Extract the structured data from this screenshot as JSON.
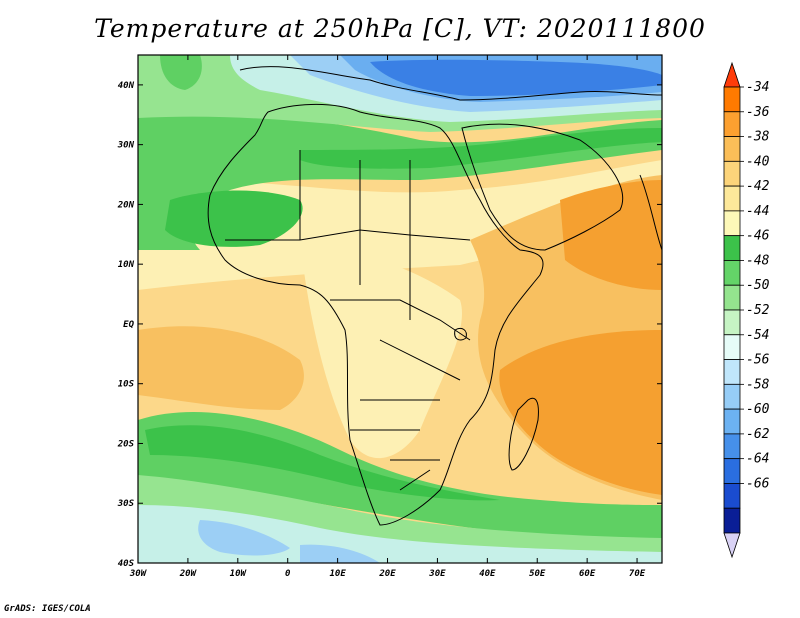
{
  "title": "Temperature at 250hPa [C], VT: 2020111800",
  "credit": "GrADS: IGES/COLA",
  "map": {
    "lon_ticks": [
      "30W",
      "20W",
      "10W",
      "0",
      "10E",
      "20E",
      "30E",
      "40E",
      "50E",
      "60E",
      "70E"
    ],
    "lat_ticks": [
      "40N",
      "30N",
      "20N",
      "10N",
      "EQ",
      "10S",
      "20S",
      "30S",
      "40S"
    ],
    "extent": {
      "lon_min": -30,
      "lon_max": 75,
      "lat_min": -40,
      "lat_max": 45
    },
    "colors": {
      "warm_deep": "#f5a030",
      "warm": "#f8c060",
      "warm_light": "#fcd88a",
      "pale": "#fdf0b4",
      "green_deep": "#3cc24a",
      "green": "#5fd063",
      "green_light": "#96e490",
      "aqua": "#c6f0e8",
      "sky": "#9ccff5",
      "blue": "#6aaef0",
      "blue_deep": "#3a80e5"
    }
  },
  "colorbar": {
    "labels": [
      "-34",
      "-36",
      "-38",
      "-40",
      "-42",
      "-44",
      "-46",
      "-48",
      "-50",
      "-52",
      "-54",
      "-56",
      "-58",
      "-60",
      "-62",
      "-64",
      "-66"
    ],
    "colors": [
      "#ff3c0a",
      "#ff7a00",
      "#fca030",
      "#fbbe58",
      "#fcd47a",
      "#fde89a",
      "#fdf8b8",
      "#3cc24a",
      "#64d468",
      "#94e48e",
      "#c6f4c4",
      "#e6fcf8",
      "#c0e6fb",
      "#96cdf7",
      "#6cb2f2",
      "#4690ea",
      "#2a6ee0",
      "#1a4cd0",
      "#0a1e96",
      "#d9d2f5"
    ]
  }
}
